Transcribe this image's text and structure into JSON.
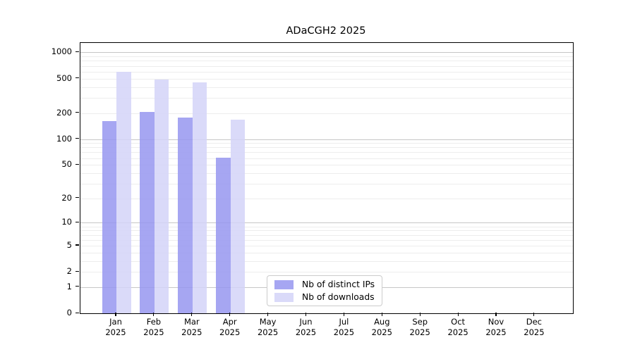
{
  "figure": {
    "title": "ADaCGH2 2025"
  },
  "chart_data": {
    "type": "bar",
    "title": "ADaCGH2 2025",
    "x_categories": [
      {
        "month": "Jan",
        "year": "2025"
      },
      {
        "month": "Feb",
        "year": "2025"
      },
      {
        "month": "Mar",
        "year": "2025"
      },
      {
        "month": "Apr",
        "year": "2025"
      },
      {
        "month": "May",
        "year": "2025"
      },
      {
        "month": "Jun",
        "year": "2025"
      },
      {
        "month": "Jul",
        "year": "2025"
      },
      {
        "month": "Aug",
        "year": "2025"
      },
      {
        "month": "Sep",
        "year": "2025"
      },
      {
        "month": "Oct",
        "year": "2025"
      },
      {
        "month": "Nov",
        "year": "2025"
      },
      {
        "month": "Dec",
        "year": "2025"
      }
    ],
    "series": [
      {
        "name": "Nb of distinct IPs",
        "color": "rgba(150,150,240,0.85)",
        "values": [
          162,
          205,
          177,
          61,
          null,
          null,
          null,
          null,
          null,
          null,
          null,
          null
        ]
      },
      {
        "name": "Nb of downloads",
        "color": "rgba(211,211,248,0.85)",
        "values": [
          600,
          486,
          453,
          167,
          null,
          null,
          null,
          null,
          null,
          null,
          null,
          null
        ]
      }
    ],
    "y_ticks": [
      0,
      1,
      2,
      5,
      10,
      20,
      50,
      100,
      200,
      500,
      1000
    ],
    "y_scale": "log10(1+x)",
    "ylim": [
      0,
      1300
    ],
    "xlabel": "",
    "ylabel": "",
    "grid": true,
    "legend_position": "lower-center-inside"
  }
}
